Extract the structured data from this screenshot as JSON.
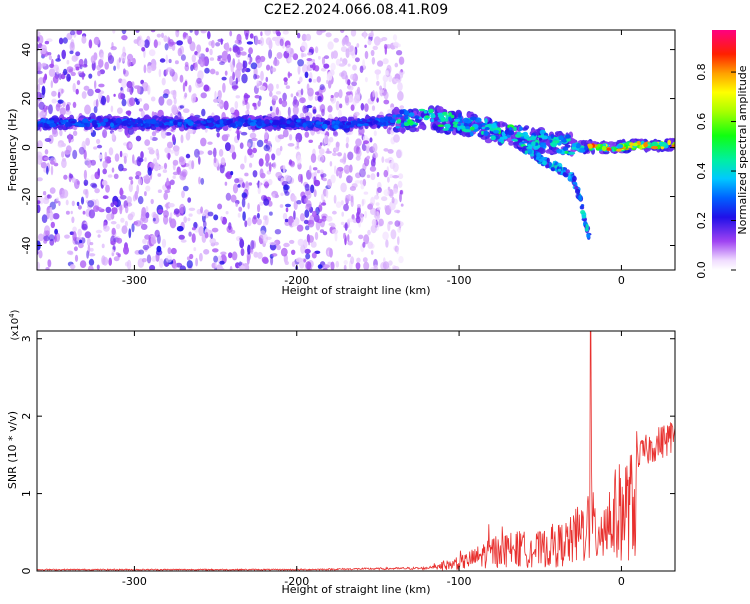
{
  "title": "C2E2.2024.066.08.41.R09",
  "colorbar": {
    "label": "Normalized spectral amplitude",
    "ticks": [
      "0.0",
      "0.2",
      "0.4",
      "0.6",
      "0.8"
    ],
    "tick_values": [
      0.0,
      0.2,
      0.4,
      0.6,
      0.8
    ],
    "range": [
      0,
      0.97
    ]
  },
  "chart_data": [
    {
      "type": "heatmap",
      "xlabel": "Height of straight line (km)",
      "ylabel": "Frequency (Hz)",
      "xlim": [
        -360,
        33
      ],
      "ylim": [
        -50,
        48
      ],
      "x_ticks": [
        -300,
        -200,
        -100,
        0
      ],
      "x_tick_labels": [
        "-300",
        "-200",
        "-100",
        "0"
      ],
      "y_ticks": [
        -40,
        -20,
        0,
        20,
        40
      ],
      "y_tick_labels": [
        "-40",
        "-20",
        "0",
        "20",
        "40"
      ],
      "colormap": "white-to-magenta-blue-cyan-green-yellow-red",
      "ridge": {
        "x": [
          -360,
          -300,
          -250,
          -200,
          -180,
          -140,
          -120,
          -100,
          -80,
          -60,
          -40,
          -25,
          -10,
          0,
          10,
          20,
          33
        ],
        "y": [
          10,
          10,
          10,
          10,
          9,
          11,
          12,
          10,
          7,
          4,
          2,
          0,
          0,
          0,
          1,
          1,
          1
        ]
      },
      "branch": {
        "x": [
          -60,
          -50,
          -40,
          -30,
          -25,
          -20
        ],
        "y": [
          0,
          -5,
          -8,
          -12,
          -22,
          -37
        ]
      },
      "noise_regions": [
        {
          "x": [
            -360,
            -180
          ],
          "density": "high"
        },
        {
          "x": [
            -180,
            -135
          ],
          "density": "medium"
        }
      ]
    },
    {
      "type": "line",
      "xlabel": "Height of straight line (km)",
      "ylabel": "SNR (10 * v/v)",
      "y_multiplier": "(x10",
      "y_multiplier_exp": "4",
      "y_multiplier_close": ")",
      "xlim": [
        -360,
        33
      ],
      "ylim": [
        0,
        3.1
      ],
      "x_ticks": [
        -300,
        -200,
        -100,
        0
      ],
      "x_tick_labels": [
        "-300",
        "-200",
        "-100",
        "0"
      ],
      "y_ticks": [
        0,
        1,
        2,
        3
      ],
      "y_tick_labels": [
        "0",
        "1",
        "2",
        "3"
      ],
      "color": "#e8302e",
      "envelope": {
        "x": [
          -360,
          -200,
          -120,
          -110,
          -100,
          -90,
          -80,
          -70,
          -60,
          -50,
          -40,
          -30,
          -25,
          -20,
          -15,
          -10,
          0,
          10,
          20,
          33
        ],
        "y": [
          0.02,
          0.02,
          0.04,
          0.12,
          0.18,
          0.3,
          0.45,
          0.5,
          0.5,
          0.5,
          0.58,
          0.7,
          0.9,
          1.1,
          0.9,
          1.1,
          1.4,
          1.6,
          1.75,
          1.9
        ]
      },
      "spike": {
        "x": -19,
        "y": 3.1
      }
    }
  ]
}
